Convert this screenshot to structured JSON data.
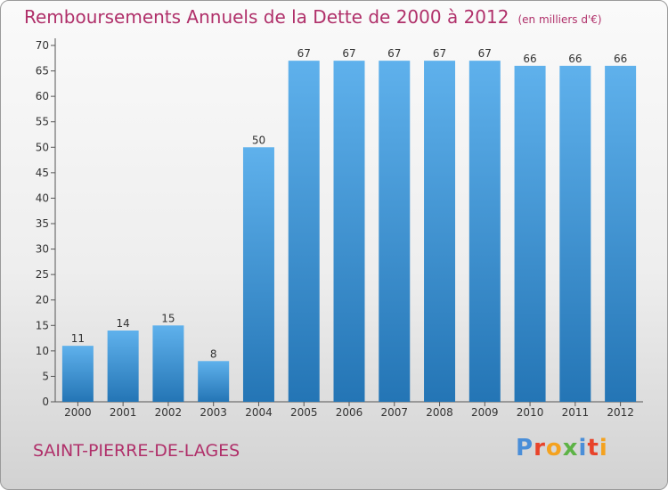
{
  "header": {
    "title": "Remboursements Annuels de la Dette de 2000 à 2012",
    "subtitle": "(en milliers d'€)"
  },
  "footer": {
    "commune": "SAINT-PIERRE-DE-LAGES",
    "logo": "Proxiti"
  },
  "colors": {
    "title": "#b0306a",
    "bar_light": "#5fb1ec",
    "bar_dark": "#2475b5",
    "logo": [
      "#4a8ed8",
      "#e8432a",
      "#f4a21f",
      "#5db346",
      "#4a8ed8",
      "#e8432a",
      "#f4a21f"
    ]
  },
  "chart_data": {
    "type": "bar",
    "categories": [
      "2000",
      "2001",
      "2002",
      "2003",
      "2004",
      "2005",
      "2006",
      "2007",
      "2008",
      "2009",
      "2010",
      "2011",
      "2012"
    ],
    "values": [
      11,
      14,
      15,
      8,
      50,
      67,
      67,
      67,
      67,
      67,
      66,
      66,
      66
    ],
    "ylim": [
      0,
      70
    ],
    "yticks": [
      0,
      5,
      10,
      15,
      20,
      25,
      30,
      35,
      40,
      45,
      50,
      55,
      60,
      65,
      70
    ],
    "grid": false,
    "data_labels": true
  }
}
